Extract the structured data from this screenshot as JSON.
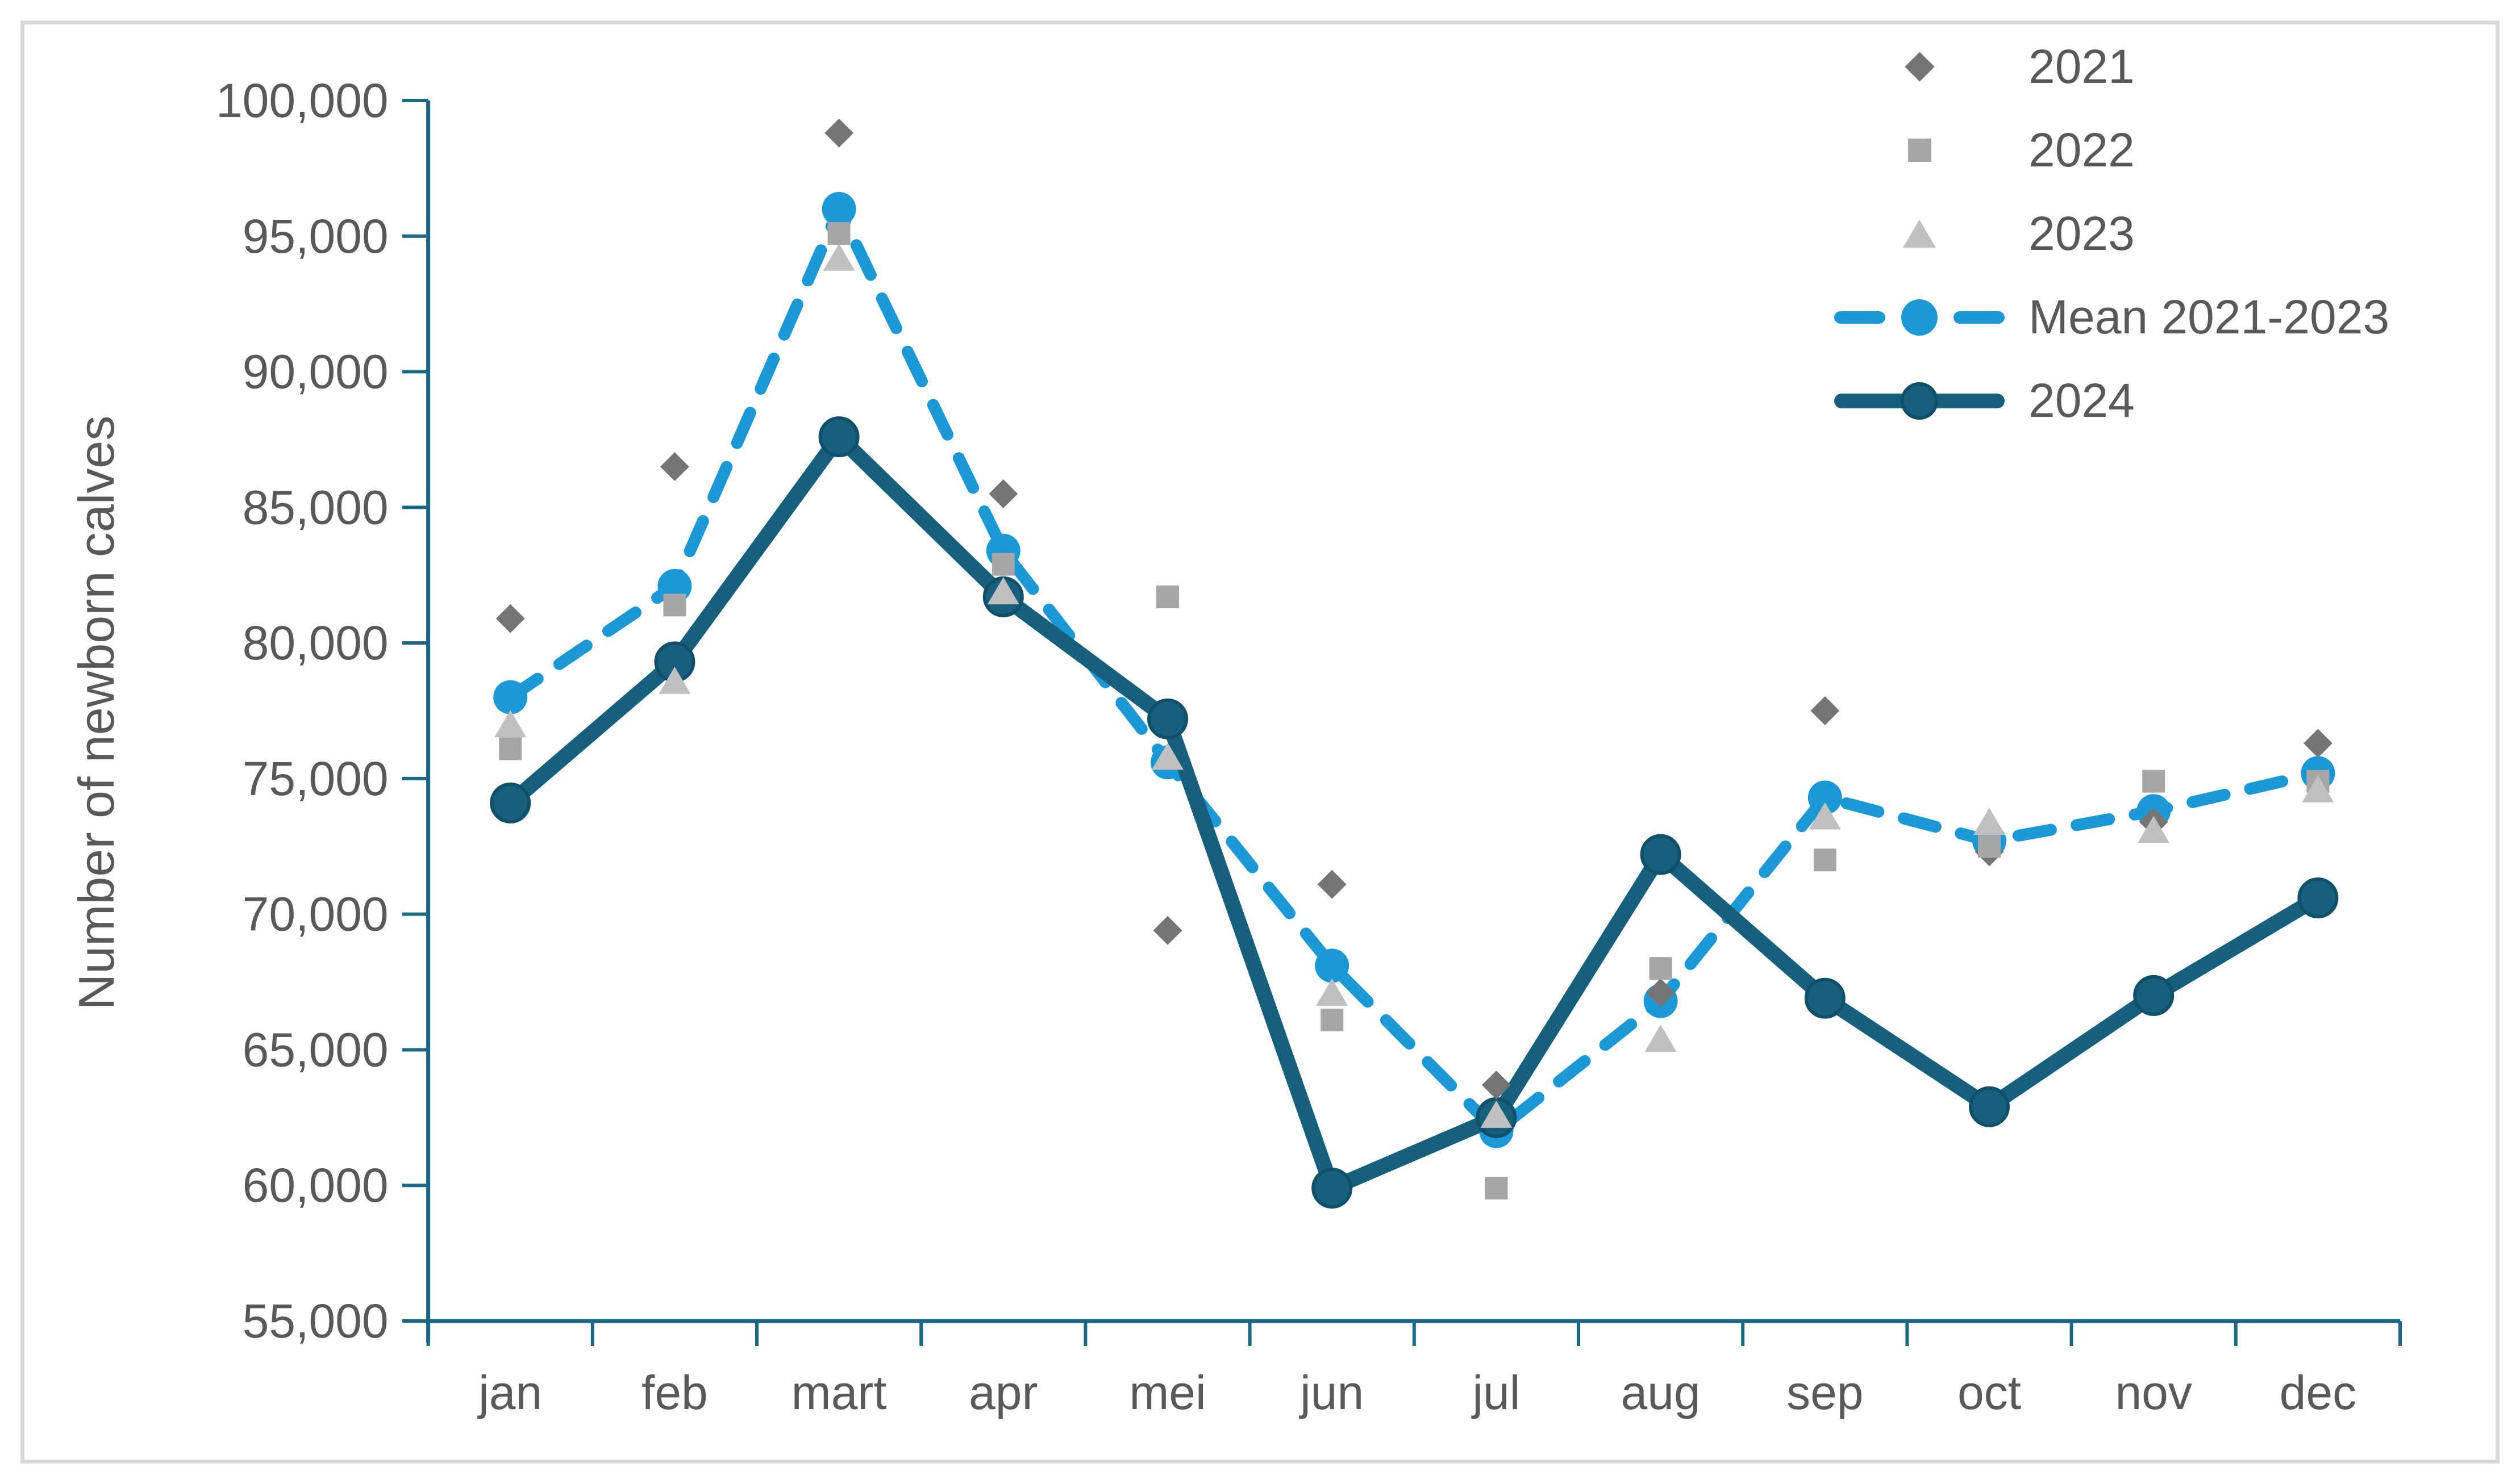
{
  "chart_data": {
    "type": "line",
    "title": "",
    "xlabel": "",
    "ylabel": "Number of newborn calves",
    "categories": [
      "jan",
      "feb",
      "mart",
      "apr",
      "mei",
      "jun",
      "jul",
      "aug",
      "sep",
      "oct",
      "nov",
      "dec"
    ],
    "ylim": [
      55000,
      100000
    ],
    "y_tick_step": 5000,
    "y_ticks": [
      {
        "value": 55000,
        "label": "55,000"
      },
      {
        "value": 60000,
        "label": "60,000"
      },
      {
        "value": 65000,
        "label": "65,000"
      },
      {
        "value": 70000,
        "label": "70,000"
      },
      {
        "value": 75000,
        "label": "75,000"
      },
      {
        "value": 80000,
        "label": "80,000"
      },
      {
        "value": 85000,
        "label": "85,000"
      },
      {
        "value": 90000,
        "label": "90,000"
      },
      {
        "value": 95000,
        "label": "95,000"
      },
      {
        "value": 100000,
        "label": "100,000"
      }
    ],
    "grid": false,
    "legend_position": "top-right",
    "axis_color": "#1b6886",
    "text_color": "#595959",
    "frame_border_color": "#d9d9d9",
    "series": [
      {
        "name": "2021",
        "type": "scatter",
        "marker": "diamond",
        "color": "#757575",
        "values": [
          80900,
          86500,
          98800,
          85500,
          69400,
          71100,
          63700,
          67100,
          77500,
          72300,
          73400,
          76300
        ]
      },
      {
        "name": "2022",
        "type": "scatter",
        "marker": "square",
        "color": "#a6a6a6",
        "values": [
          76100,
          81400,
          95100,
          82900,
          81700,
          66100,
          59900,
          68000,
          72000,
          72500,
          74900,
          74900
        ]
      },
      {
        "name": "2023",
        "type": "scatter",
        "marker": "triangle",
        "color": "#bfbfbf",
        "values": [
          76900,
          78500,
          94100,
          81800,
          75700,
          67000,
          62500,
          65300,
          73500,
          73300,
          73000,
          74500
        ]
      },
      {
        "name": "Mean 2021-2023",
        "type": "line",
        "line_style": "dashed",
        "marker": "circle",
        "color": "#1b99d6",
        "values": [
          78000,
          82100,
          96000,
          83400,
          75600,
          68100,
          62000,
          66800,
          74300,
          72700,
          73800,
          75200
        ]
      },
      {
        "name": "2024",
        "type": "line",
        "line_style": "solid",
        "marker": "circle",
        "color": "#17607d",
        "values": [
          74100,
          79300,
          87600,
          81700,
          77200,
          59900,
          62500,
          72200,
          66900,
          62900,
          67000,
          70600
        ]
      }
    ]
  }
}
